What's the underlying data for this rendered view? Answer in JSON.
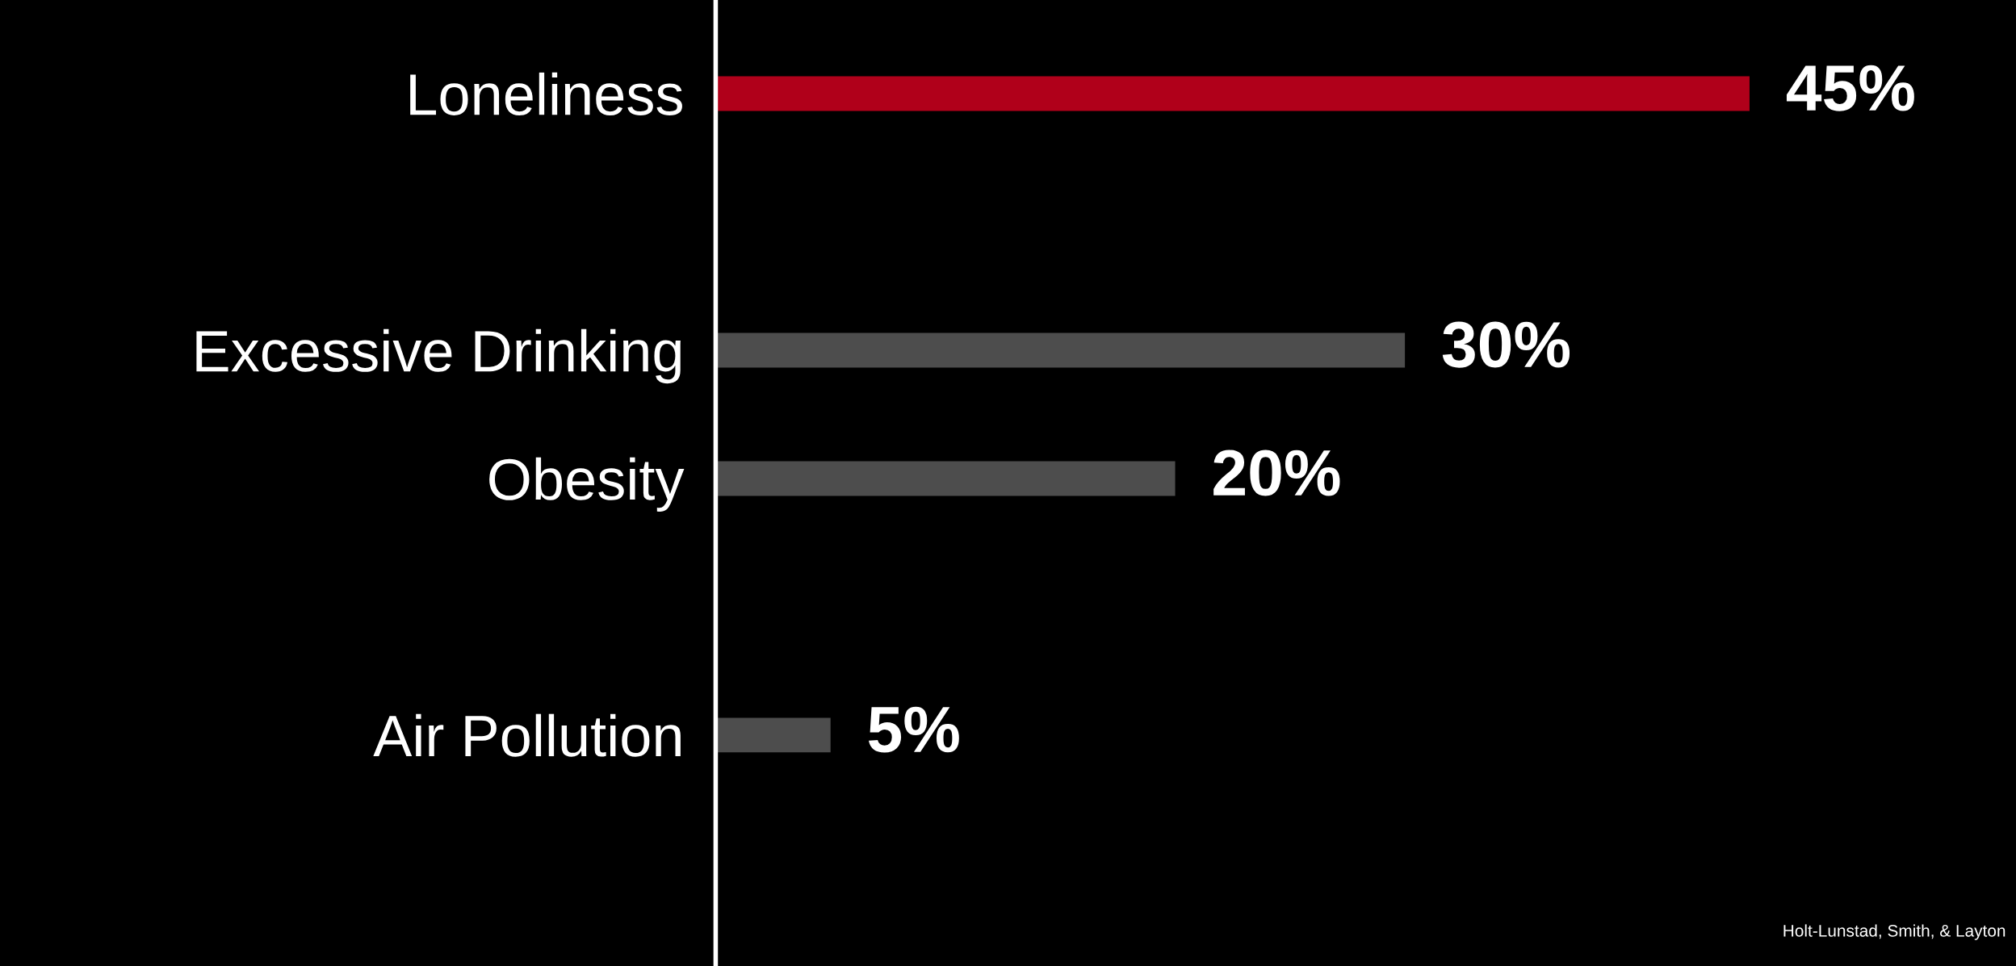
{
  "chart_data": {
    "type": "bar",
    "orientation": "horizontal",
    "categories": [
      "Loneliness",
      null,
      "Excessive Drinking",
      "Obesity",
      null,
      "Air Pollution"
    ],
    "values": [
      45,
      null,
      30,
      20,
      null,
      5
    ],
    "colors": [
      "#b0001a",
      null,
      "#4d4d4d",
      "#4d4d4d",
      null,
      "#4d4d4d"
    ],
    "value_labels": [
      "45%",
      null,
      "30%",
      "20%",
      null,
      "5%"
    ],
    "tick_labels": "y",
    "grid": false,
    "legend": false,
    "annotations": [
      "Holt-Lunstad, Smith, & Layton"
    ]
  }
}
